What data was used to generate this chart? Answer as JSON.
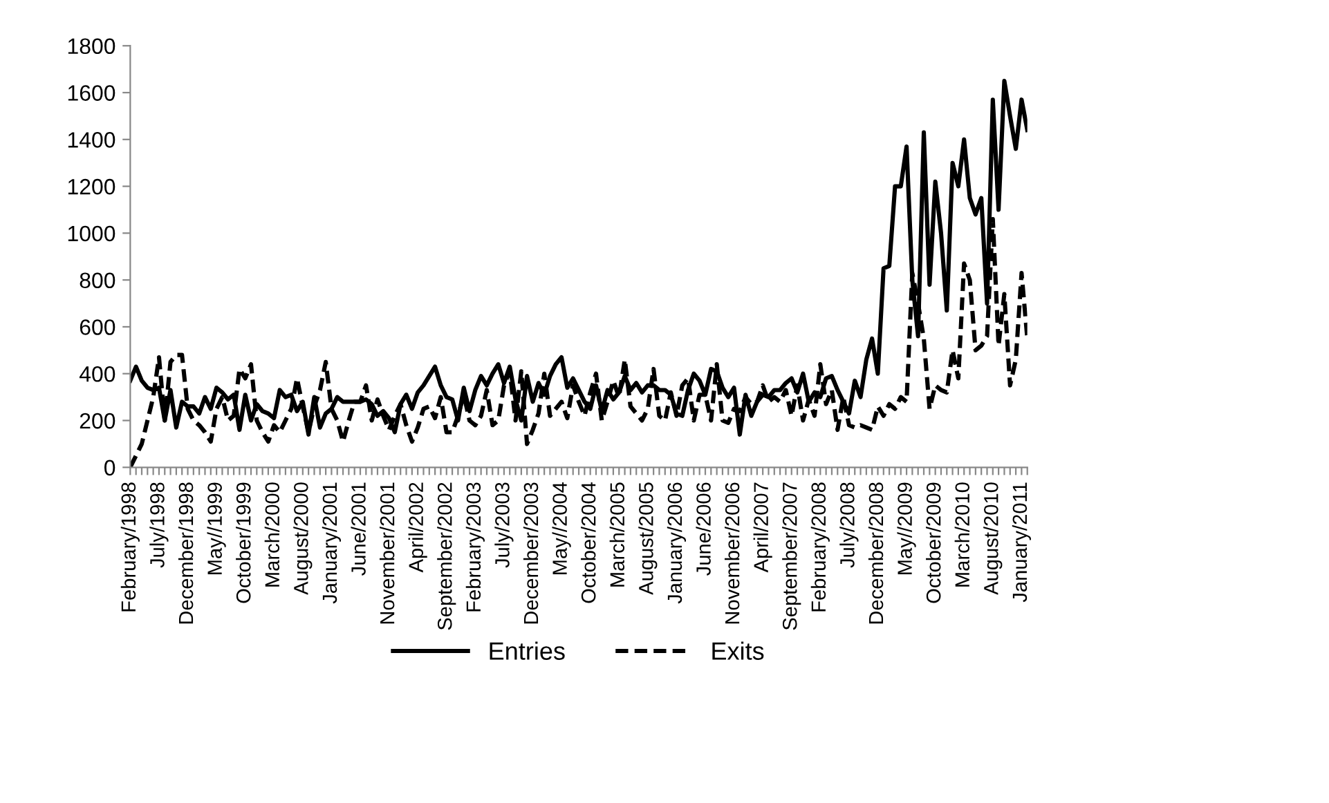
{
  "chart_data": {
    "type": "line",
    "categories": [
      "February/1998",
      null,
      null,
      null,
      null,
      "July/1998",
      null,
      null,
      null,
      null,
      "December/1998",
      null,
      null,
      null,
      null,
      "May//1999",
      null,
      null,
      null,
      null,
      "October/1999",
      null,
      null,
      null,
      null,
      "March/2000",
      null,
      null,
      null,
      null,
      "August/2000",
      null,
      null,
      null,
      null,
      "January/2001",
      null,
      null,
      null,
      null,
      "June/2001",
      null,
      null,
      null,
      null,
      "November/2001",
      null,
      null,
      null,
      null,
      "April/2002",
      null,
      null,
      null,
      null,
      "September/2002",
      null,
      null,
      null,
      null,
      "February/2003",
      null,
      null,
      null,
      null,
      "July/2003",
      null,
      null,
      null,
      null,
      "December/2003",
      null,
      null,
      null,
      null,
      "May//2004",
      null,
      null,
      null,
      null,
      "October/2004",
      null,
      null,
      null,
      null,
      "March/2005",
      null,
      null,
      null,
      null,
      "August/2005",
      null,
      null,
      null,
      null,
      "January/2006",
      null,
      null,
      null,
      null,
      "June/2006",
      null,
      null,
      null,
      null,
      "November/2006",
      null,
      null,
      null,
      null,
      "April/2007",
      null,
      null,
      null,
      null,
      "September/2007",
      null,
      null,
      null,
      null,
      "February/2008",
      null,
      null,
      null,
      null,
      "July/2008",
      null,
      null,
      null,
      null,
      "December/2008",
      null,
      null,
      null,
      null,
      "May//2009",
      null,
      null,
      null,
      null,
      "October/2009",
      null,
      null,
      null,
      null,
      "March/2010",
      null,
      null,
      null,
      null,
      "August/2010",
      null,
      null,
      null,
      null,
      "January/2011",
      null
    ],
    "series": [
      {
        "name": "Entries",
        "color": "#000000",
        "line_style": "solid",
        "values": [
          370,
          430,
          370,
          340,
          330,
          340,
          200,
          330,
          170,
          280,
          260,
          260,
          230,
          300,
          250,
          340,
          320,
          290,
          310,
          160,
          310,
          200,
          270,
          240,
          230,
          210,
          330,
          300,
          310,
          240,
          280,
          140,
          300,
          170,
          230,
          250,
          300,
          280,
          280,
          280,
          280,
          290,
          270,
          220,
          240,
          210,
          150,
          270,
          310,
          250,
          320,
          350,
          390,
          430,
          350,
          300,
          290,
          200,
          340,
          240,
          330,
          390,
          350,
          400,
          440,
          360,
          430,
          290,
          200,
          390,
          280,
          360,
          310,
          390,
          440,
          470,
          340,
          380,
          330,
          280,
          250,
          350,
          240,
          330,
          290,
          320,
          390,
          330,
          360,
          320,
          350,
          350,
          330,
          330,
          310,
          230,
          220,
          330,
          400,
          370,
          310,
          420,
          410,
          340,
          300,
          340,
          140,
          310,
          220,
          280,
          310,
          300,
          330,
          330,
          360,
          380,
          320,
          400,
          280,
          320,
          300,
          380,
          390,
          330,
          280,
          230,
          370,
          300,
          460,
          550,
          400,
          850,
          860,
          1200,
          1200,
          1370,
          800,
          560,
          1430,
          780,
          1220,
          1000,
          670,
          1300,
          1200,
          1400,
          1150,
          1080,
          1150,
          700,
          1570,
          1100,
          1650,
          1500,
          1360,
          1570,
          1440
        ]
      },
      {
        "name": "Exits",
        "color": "#000000",
        "line_style": "dashed",
        "values": [
          0,
          50,
          100,
          200,
          300,
          470,
          200,
          450,
          480,
          480,
          250,
          200,
          180,
          150,
          110,
          250,
          300,
          200,
          220,
          420,
          380,
          440,
          200,
          150,
          110,
          180,
          150,
          200,
          250,
          380,
          260,
          150,
          260,
          330,
          450,
          250,
          200,
          110,
          200,
          280,
          280,
          350,
          200,
          290,
          220,
          160,
          220,
          270,
          180,
          110,
          170,
          250,
          260,
          210,
          300,
          150,
          150,
          220,
          310,
          200,
          180,
          220,
          330,
          180,
          200,
          350,
          410,
          200,
          410,
          100,
          160,
          230,
          400,
          220,
          250,
          280,
          210,
          350,
          280,
          220,
          320,
          400,
          200,
          280,
          370,
          300,
          460,
          260,
          230,
          200,
          250,
          420,
          220,
          200,
          320,
          220,
          350,
          380,
          200,
          310,
          310,
          200,
          440,
          200,
          190,
          250,
          240,
          300,
          270,
          280,
          350,
          280,
          300,
          280,
          330,
          220,
          350,
          200,
          290,
          220,
          440,
          270,
          330,
          160,
          300,
          180,
          170,
          180,
          170,
          160,
          260,
          220,
          270,
          250,
          300,
          280,
          830,
          700,
          550,
          250,
          350,
          330,
          320,
          500,
          380,
          870,
          800,
          500,
          520,
          560,
          1060,
          520,
          740,
          350,
          460,
          830,
          550
        ]
      }
    ],
    "ylim": [
      0,
      1800
    ],
    "yticks": [
      0,
      200,
      400,
      600,
      800,
      1000,
      1200,
      1400,
      1600,
      1800
    ],
    "grid": false,
    "legend": "bottom"
  }
}
